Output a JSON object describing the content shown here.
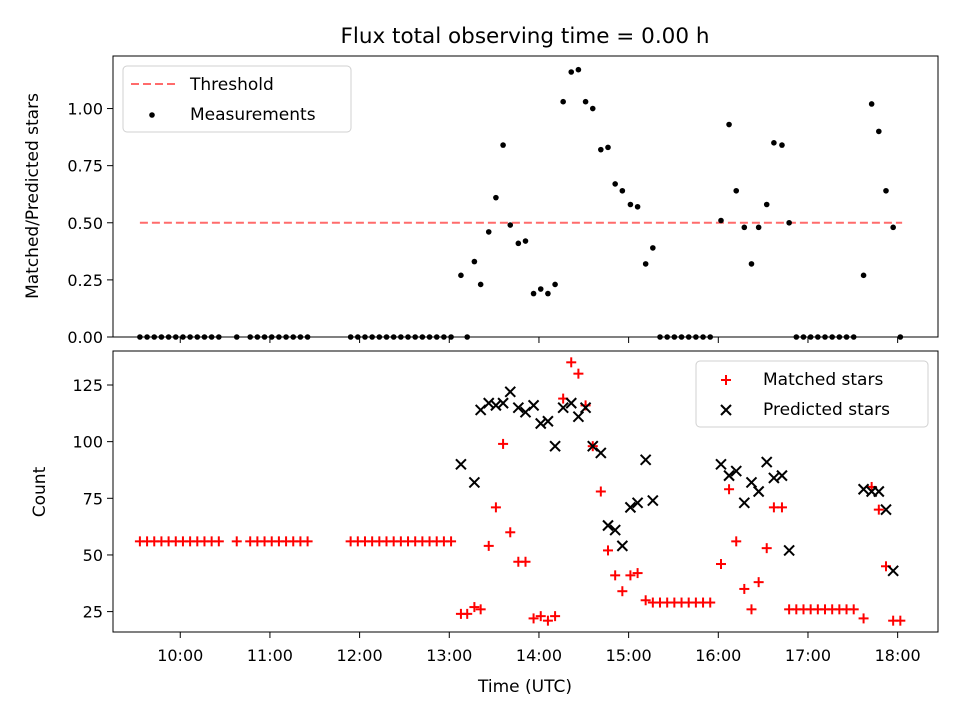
{
  "title": "Flux total observing time = 0.00 h",
  "chart_data": [
    {
      "type": "scatter",
      "ylabel": "Matched/Predicted stars",
      "ylim": [
        0,
        1.23
      ],
      "yticks": [
        0,
        0.25,
        0.5,
        0.75,
        1.0
      ],
      "ytick_labels": [
        "0.00",
        "0.25",
        "0.50",
        "0.75",
        "1.00"
      ],
      "legend_position": "top-left",
      "threshold": {
        "name": "Threshold",
        "value": 0.5,
        "x_start": 9.55,
        "x_end": 18.05,
        "color": "#ff6b6b"
      },
      "series": [
        {
          "name": "Measurements",
          "color": "#000000",
          "points": [
            [
              9.55,
              0
            ],
            [
              9.63,
              0
            ],
            [
              9.71,
              0
            ],
            [
              9.79,
              0
            ],
            [
              9.87,
              0
            ],
            [
              9.95,
              0
            ],
            [
              10.03,
              0
            ],
            [
              10.11,
              0
            ],
            [
              10.19,
              0
            ],
            [
              10.27,
              0
            ],
            [
              10.35,
              0
            ],
            [
              10.43,
              0
            ],
            [
              10.63,
              0
            ],
            [
              10.78,
              0
            ],
            [
              10.86,
              0
            ],
            [
              10.94,
              0
            ],
            [
              11.02,
              0
            ],
            [
              11.1,
              0
            ],
            [
              11.18,
              0
            ],
            [
              11.26,
              0
            ],
            [
              11.34,
              0
            ],
            [
              11.42,
              0
            ],
            [
              11.9,
              0
            ],
            [
              11.98,
              0
            ],
            [
              12.06,
              0
            ],
            [
              12.14,
              0
            ],
            [
              12.22,
              0
            ],
            [
              12.3,
              0
            ],
            [
              12.38,
              0
            ],
            [
              12.46,
              0
            ],
            [
              12.54,
              0
            ],
            [
              12.62,
              0
            ],
            [
              12.7,
              0
            ],
            [
              12.78,
              0
            ],
            [
              12.86,
              0
            ],
            [
              12.94,
              0
            ],
            [
              13.02,
              0
            ],
            [
              13.13,
              0.27
            ],
            [
              13.2,
              0
            ],
            [
              13.28,
              0.33
            ],
            [
              13.35,
              0.23
            ],
            [
              13.44,
              0.46
            ],
            [
              13.52,
              0.61
            ],
            [
              13.6,
              0.84
            ],
            [
              13.68,
              0.49
            ],
            [
              13.77,
              0.41
            ],
            [
              13.85,
              0.42
            ],
            [
              13.94,
              0.19
            ],
            [
              14.02,
              0.21
            ],
            [
              14.1,
              0.19
            ],
            [
              14.18,
              0.23
            ],
            [
              14.27,
              1.03
            ],
            [
              14.36,
              1.16
            ],
            [
              14.44,
              1.17
            ],
            [
              14.52,
              1.03
            ],
            [
              14.6,
              1.0
            ],
            [
              14.69,
              0.82
            ],
            [
              14.77,
              0.83
            ],
            [
              14.85,
              0.67
            ],
            [
              14.93,
              0.64
            ],
            [
              15.02,
              0.58
            ],
            [
              15.1,
              0.57
            ],
            [
              15.19,
              0.32
            ],
            [
              15.27,
              0.39
            ],
            [
              15.35,
              0
            ],
            [
              15.43,
              0
            ],
            [
              15.51,
              0
            ],
            [
              15.59,
              0
            ],
            [
              15.67,
              0
            ],
            [
              15.75,
              0
            ],
            [
              15.83,
              0
            ],
            [
              15.91,
              0
            ],
            [
              16.03,
              0.51
            ],
            [
              16.12,
              0.93
            ],
            [
              16.2,
              0.64
            ],
            [
              16.29,
              0.48
            ],
            [
              16.37,
              0.32
            ],
            [
              16.45,
              0.48
            ],
            [
              16.54,
              0.58
            ],
            [
              16.62,
              0.85
            ],
            [
              16.71,
              0.84
            ],
            [
              16.79,
              0.5
            ],
            [
              16.87,
              0
            ],
            [
              16.95,
              0
            ],
            [
              17.03,
              0
            ],
            [
              17.11,
              0
            ],
            [
              17.19,
              0
            ],
            [
              17.27,
              0
            ],
            [
              17.35,
              0
            ],
            [
              17.43,
              0
            ],
            [
              17.51,
              0
            ],
            [
              17.62,
              0.27
            ],
            [
              17.71,
              1.02
            ],
            [
              17.79,
              0.9
            ],
            [
              17.87,
              0.64
            ],
            [
              17.95,
              0.48
            ],
            [
              18.03,
              0
            ]
          ]
        }
      ]
    },
    {
      "type": "scatter",
      "xlabel": "Time (UTC)",
      "ylabel": "Count",
      "xlim": [
        9.25,
        18.45
      ],
      "ylim": [
        16,
        140
      ],
      "xticks": [
        10,
        11,
        12,
        13,
        14,
        15,
        16,
        17,
        18
      ],
      "xtick_labels": [
        "10:00",
        "11:00",
        "12:00",
        "13:00",
        "14:00",
        "15:00",
        "16:00",
        "17:00",
        "18:00"
      ],
      "yticks": [
        25,
        50,
        75,
        100,
        125
      ],
      "ytick_labels": [
        "25",
        "50",
        "75",
        "100",
        "125"
      ],
      "legend_position": "top-right",
      "series": [
        {
          "name": "Matched stars",
          "marker": "plus",
          "color": "#ff0000",
          "points": [
            [
              9.55,
              56
            ],
            [
              9.63,
              56
            ],
            [
              9.71,
              56
            ],
            [
              9.79,
              56
            ],
            [
              9.87,
              56
            ],
            [
              9.95,
              56
            ],
            [
              10.03,
              56
            ],
            [
              10.11,
              56
            ],
            [
              10.19,
              56
            ],
            [
              10.27,
              56
            ],
            [
              10.35,
              56
            ],
            [
              10.43,
              56
            ],
            [
              10.63,
              56
            ],
            [
              10.78,
              56
            ],
            [
              10.86,
              56
            ],
            [
              10.94,
              56
            ],
            [
              11.02,
              56
            ],
            [
              11.1,
              56
            ],
            [
              11.18,
              56
            ],
            [
              11.26,
              56
            ],
            [
              11.34,
              56
            ],
            [
              11.42,
              56
            ],
            [
              11.9,
              56
            ],
            [
              11.98,
              56
            ],
            [
              12.06,
              56
            ],
            [
              12.14,
              56
            ],
            [
              12.22,
              56
            ],
            [
              12.3,
              56
            ],
            [
              12.38,
              56
            ],
            [
              12.46,
              56
            ],
            [
              12.54,
              56
            ],
            [
              12.62,
              56
            ],
            [
              12.7,
              56
            ],
            [
              12.78,
              56
            ],
            [
              12.86,
              56
            ],
            [
              12.94,
              56
            ],
            [
              13.02,
              56
            ],
            [
              13.13,
              24
            ],
            [
              13.2,
              24
            ],
            [
              13.28,
              27
            ],
            [
              13.35,
              26
            ],
            [
              13.44,
              54
            ],
            [
              13.52,
              71
            ],
            [
              13.6,
              99
            ],
            [
              13.68,
              60
            ],
            [
              13.77,
              47
            ],
            [
              13.85,
              47
            ],
            [
              13.94,
              22
            ],
            [
              14.02,
              23
            ],
            [
              14.1,
              21
            ],
            [
              14.18,
              23
            ],
            [
              14.27,
              119
            ],
            [
              14.36,
              135
            ],
            [
              14.44,
              130
            ],
            [
              14.52,
              116
            ],
            [
              14.6,
              98
            ],
            [
              14.69,
              78
            ],
            [
              14.77,
              52
            ],
            [
              14.85,
              41
            ],
            [
              14.93,
              34
            ],
            [
              15.02,
              41
            ],
            [
              15.1,
              42
            ],
            [
              15.19,
              30
            ],
            [
              15.27,
              29
            ],
            [
              15.35,
              29
            ],
            [
              15.43,
              29
            ],
            [
              15.51,
              29
            ],
            [
              15.59,
              29
            ],
            [
              15.67,
              29
            ],
            [
              15.75,
              29
            ],
            [
              15.83,
              29
            ],
            [
              15.91,
              29
            ],
            [
              16.03,
              46
            ],
            [
              16.12,
              79
            ],
            [
              16.2,
              56
            ],
            [
              16.29,
              35
            ],
            [
              16.37,
              26
            ],
            [
              16.45,
              38
            ],
            [
              16.54,
              53
            ],
            [
              16.62,
              71
            ],
            [
              16.71,
              71
            ],
            [
              16.79,
              26
            ],
            [
              16.87,
              26
            ],
            [
              16.95,
              26
            ],
            [
              17.03,
              26
            ],
            [
              17.11,
              26
            ],
            [
              17.19,
              26
            ],
            [
              17.27,
              26
            ],
            [
              17.35,
              26
            ],
            [
              17.43,
              26
            ],
            [
              17.51,
              26
            ],
            [
              17.62,
              22
            ],
            [
              17.71,
              80
            ],
            [
              17.79,
              70
            ],
            [
              17.87,
              45
            ],
            [
              17.95,
              21
            ],
            [
              18.03,
              21
            ]
          ]
        },
        {
          "name": "Predicted stars",
          "marker": "x",
          "color": "#000000",
          "points": [
            [
              13.13,
              90
            ],
            [
              13.28,
              82
            ],
            [
              13.35,
              114
            ],
            [
              13.44,
              117
            ],
            [
              13.52,
              116
            ],
            [
              13.6,
              117
            ],
            [
              13.68,
              122
            ],
            [
              13.77,
              115
            ],
            [
              13.85,
              113
            ],
            [
              13.94,
              116
            ],
            [
              14.02,
              108
            ],
            [
              14.1,
              109
            ],
            [
              14.18,
              98
            ],
            [
              14.27,
              115
            ],
            [
              14.36,
              117
            ],
            [
              14.44,
              111
            ],
            [
              14.52,
              115
            ],
            [
              14.6,
              98
            ],
            [
              14.69,
              95
            ],
            [
              14.77,
              63
            ],
            [
              14.85,
              61
            ],
            [
              14.93,
              54
            ],
            [
              15.02,
              71
            ],
            [
              15.1,
              73
            ],
            [
              15.19,
              92
            ],
            [
              15.27,
              74
            ],
            [
              16.03,
              90
            ],
            [
              16.12,
              85
            ],
            [
              16.2,
              87
            ],
            [
              16.29,
              73
            ],
            [
              16.37,
              82
            ],
            [
              16.45,
              78
            ],
            [
              16.54,
              91
            ],
            [
              16.62,
              84
            ],
            [
              16.71,
              85
            ],
            [
              16.79,
              52
            ],
            [
              17.62,
              79
            ],
            [
              17.71,
              78
            ],
            [
              17.79,
              78
            ],
            [
              17.87,
              70
            ],
            [
              17.95,
              43
            ]
          ]
        }
      ]
    }
  ]
}
